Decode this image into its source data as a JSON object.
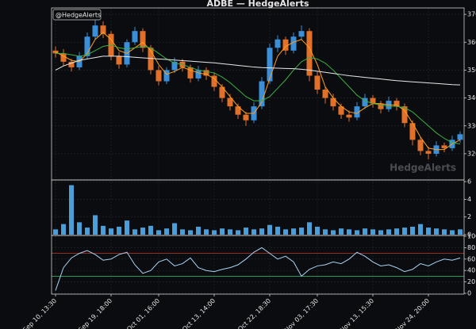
{
  "chart_data": {
    "type": "candlestick",
    "title": "ADBE — HedgeAlerts",
    "badge": "@HedgeAlerts",
    "watermark": "HedgeAlerts",
    "grid": true,
    "categories": [
      "Sep 10, 13:30",
      null,
      null,
      null,
      null,
      null,
      null,
      "Sep 19, 18:00",
      null,
      null,
      null,
      null,
      null,
      "Oct 01, 16:00",
      null,
      null,
      null,
      null,
      null,
      null,
      "Oct 13, 14:00",
      null,
      null,
      null,
      null,
      null,
      null,
      "Oct 22, 18:30",
      null,
      null,
      null,
      null,
      null,
      "Nov 03, 17:30",
      null,
      null,
      null,
      null,
      null,
      null,
      "Nov 13, 15:30",
      null,
      null,
      null,
      null,
      null,
      null,
      "Nov 24, 20:00",
      null,
      null,
      null,
      null
    ],
    "price": {
      "ylim": [
        310.6,
        372.3
      ],
      "yticks": [
        320,
        330,
        340,
        350,
        360,
        370
      ],
      "up_color": "#3b8fd9",
      "down_color": "#e0702a",
      "open": [
        357,
        356,
        353,
        351,
        355,
        362,
        366,
        363,
        355,
        352,
        360,
        364,
        358,
        350,
        346,
        350,
        353,
        351,
        347,
        350,
        348,
        344,
        340,
        337,
        334,
        332,
        337,
        346,
        358,
        361,
        357,
        362,
        364,
        348,
        343,
        340,
        337,
        334,
        333,
        337,
        340,
        338,
        336,
        339,
        337,
        331,
        325,
        321,
        320,
        323,
        322,
        325
      ],
      "high": [
        358.5,
        357.5,
        354,
        356.5,
        363.5,
        368,
        367.5,
        364,
        356.5,
        361,
        365.5,
        365,
        359,
        351.5,
        351,
        354.5,
        354,
        352,
        351.5,
        351,
        349,
        345,
        341.5,
        338,
        335,
        338.5,
        347.5,
        359.5,
        362.5,
        362,
        363.5,
        366,
        365,
        349.5,
        344,
        341.5,
        338,
        335.5,
        338.5,
        341.5,
        341,
        339,
        340.5,
        340,
        338,
        332,
        326,
        322.5,
        324.5,
        324,
        326.5,
        328
      ],
      "low": [
        354.5,
        351.5,
        349.5,
        350,
        354,
        361,
        361.5,
        353.5,
        350.5,
        351,
        359,
        356.5,
        348.5,
        344.5,
        345,
        349,
        349.5,
        345.5,
        346,
        346.5,
        342.5,
        338.5,
        335.5,
        332.5,
        330,
        331,
        336,
        345,
        356.5,
        355.5,
        356,
        361,
        346,
        341.5,
        338,
        335.5,
        332.5,
        331.5,
        332,
        336,
        336.5,
        334.5,
        335,
        335.5,
        329.5,
        323,
        319.5,
        318,
        319,
        320.5,
        321,
        324
      ],
      "close": [
        356,
        353,
        351,
        355,
        362,
        366,
        363,
        355,
        352,
        360,
        364,
        358,
        350,
        346,
        350,
        353,
        351,
        347,
        350,
        348,
        344,
        340,
        337,
        334,
        332,
        337,
        346,
        358,
        361,
        357,
        362,
        364,
        348,
        343,
        340,
        337,
        334,
        333,
        337,
        340,
        338,
        336,
        339,
        337,
        331,
        325,
        321,
        320,
        323,
        322,
        325,
        327
      ],
      "lines": [
        {
          "color": "#ff9f1c",
          "values": [
            356.5,
            355,
            353.5,
            353,
            356,
            361,
            363.5,
            361,
            357,
            356,
            358,
            360,
            357,
            352,
            348.5,
            349.5,
            351,
            350,
            349,
            348.5,
            347,
            344,
            340.5,
            337,
            334.5,
            334.5,
            338.5,
            347,
            355,
            358.5,
            360,
            361,
            358,
            352,
            344,
            340,
            337,
            335,
            334.5,
            336.5,
            338,
            338,
            337.5,
            337.5,
            335.5,
            331,
            326,
            322,
            321.5,
            321.5,
            323.5,
            325
          ]
        },
        {
          "color": "#3cb043",
          "values": [
            356,
            356,
            355.5,
            355,
            355.5,
            357,
            358.5,
            359,
            358,
            357.5,
            358,
            358.5,
            358,
            356,
            354,
            352.5,
            352,
            351,
            350,
            349.5,
            349,
            347.5,
            345.5,
            343,
            340.5,
            339,
            339,
            340.5,
            343.5,
            346.5,
            350,
            353,
            354.5,
            354,
            352.5,
            350,
            347,
            344,
            341,
            339,
            338,
            337.5,
            337,
            337,
            336.5,
            335,
            332.5,
            330,
            327.5,
            325.5,
            324,
            323.5
          ]
        },
        {
          "color": "#e8e8e8",
          "values": [
            350,
            351.5,
            352.5,
            353.5,
            354,
            354.5,
            355,
            355,
            355,
            354.8,
            354.6,
            354.4,
            354.2,
            354,
            353.8,
            353.6,
            353.4,
            353.2,
            353,
            352.8,
            352.6,
            352.3,
            352,
            351.7,
            351.4,
            351.1,
            350.9,
            350.8,
            350.7,
            350.6,
            350.5,
            350.3,
            350,
            349.6,
            349.2,
            348.8,
            348.4,
            348,
            347.7,
            347.4,
            347.1,
            346.8,
            346.5,
            346.2,
            346,
            345.8,
            345.6,
            345.4,
            345.2,
            345,
            344.8,
            344.7
          ]
        }
      ]
    },
    "volume": {
      "ylim": [
        0,
        6.1
      ],
      "yticks": [
        0,
        2,
        4,
        6
      ],
      "color": "#4a9fd8",
      "values": [
        0.6,
        1.2,
        5.6,
        1.4,
        0.8,
        2.2,
        1.0,
        0.7,
        0.9,
        1.6,
        0.6,
        0.8,
        1.0,
        0.5,
        0.7,
        1.3,
        0.6,
        0.5,
        0.9,
        0.6,
        0.5,
        0.7,
        0.6,
        0.5,
        0.8,
        0.6,
        0.7,
        1.1,
        0.9,
        0.6,
        0.7,
        0.8,
        1.4,
        0.9,
        0.6,
        0.5,
        0.7,
        0.6,
        0.5,
        0.7,
        0.6,
        0.5,
        0.6,
        0.7,
        0.8,
        0.9,
        1.2,
        0.8,
        0.7,
        0.6,
        0.5,
        0.6
      ]
    },
    "rsi": {
      "ylim": [
        0,
        100
      ],
      "yticks": [
        0,
        20,
        40,
        60,
        80,
        100
      ],
      "color": "#a9d4f5",
      "levels": [
        {
          "value": 70,
          "color": "#c0392b"
        },
        {
          "value": 30,
          "color": "#2ecc71"
        }
      ],
      "values": [
        5,
        45,
        62,
        70,
        75,
        68,
        58,
        60,
        68,
        72,
        50,
        35,
        40,
        55,
        60,
        48,
        52,
        62,
        45,
        40,
        38,
        42,
        45,
        50,
        60,
        72,
        80,
        70,
        60,
        65,
        55,
        30,
        42,
        48,
        50,
        55,
        52,
        60,
        72,
        65,
        55,
        48,
        50,
        45,
        38,
        42,
        52,
        48,
        55,
        60,
        58,
        62
      ]
    }
  }
}
